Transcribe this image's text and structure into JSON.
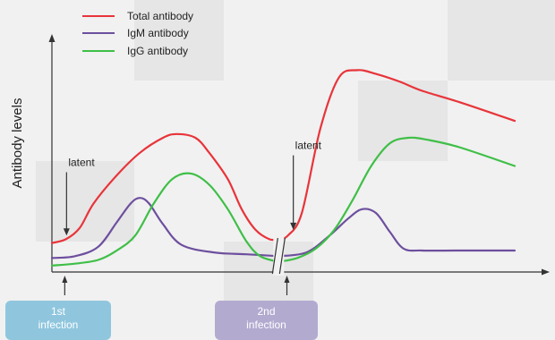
{
  "chart_data": {
    "type": "line",
    "ylabel": "Antibody levels",
    "xlabel": "",
    "legend_position": "top-left",
    "legend": [
      "Total antibody",
      "IgM antibody",
      "IgG antibody"
    ],
    "x_break": 49,
    "series": [
      {
        "name": "Total antibody",
        "color": "#e8343a",
        "x": [
          0,
          3,
          6,
          9,
          14,
          19,
          24,
          27,
          31,
          34,
          38,
          41,
          44,
          47,
          49,
          51,
          54,
          58,
          62,
          66,
          70,
          75,
          80,
          88,
          100
        ],
        "y": [
          4,
          6,
          12,
          25,
          40,
          52,
          60,
          62,
          60,
          52,
          38,
          22,
          11,
          6,
          6,
          8,
          20,
          65,
          92,
          96,
          94,
          90,
          85,
          79,
          69
        ]
      },
      {
        "name": "IgM antibody",
        "color": "#6d4f9e",
        "x": [
          0,
          5,
          10,
          14,
          17,
          19,
          21,
          24,
          28,
          35,
          42,
          49,
          55,
          60,
          64,
          67,
          70,
          73,
          76,
          80,
          88,
          100
        ],
        "y": [
          -4,
          -3,
          2,
          15,
          25,
          28,
          25,
          14,
          3,
          -1,
          -2,
          -3,
          -1,
          8,
          17,
          22,
          20,
          10,
          1,
          0,
          0,
          0
        ]
      },
      {
        "name": "IgG antibody",
        "color": "#3fbf47",
        "x": [
          0,
          5,
          10,
          14,
          18,
          22,
          26,
          30,
          34,
          38,
          42,
          45,
          49,
          53,
          57,
          61,
          65,
          69,
          73,
          77,
          81,
          88,
          100
        ],
        "y": [
          -8,
          -7,
          -5,
          0,
          8,
          25,
          38,
          41,
          35,
          22,
          5,
          -3,
          -6,
          -4,
          1,
          11,
          27,
          45,
          57,
          60,
          59,
          55,
          45
        ]
      }
    ],
    "annotations": [
      {
        "text": "latent",
        "x": 2,
        "y": 45,
        "arrow_to_y": 8
      },
      {
        "text": "latent",
        "x": 51,
        "y": 54,
        "arrow_to_y": 11
      }
    ],
    "markers": [
      {
        "lines": [
          "1st",
          "infection"
        ],
        "x": 2
      },
      {
        "lines": [
          "2nd",
          "infection"
        ],
        "x": 50
      }
    ]
  }
}
